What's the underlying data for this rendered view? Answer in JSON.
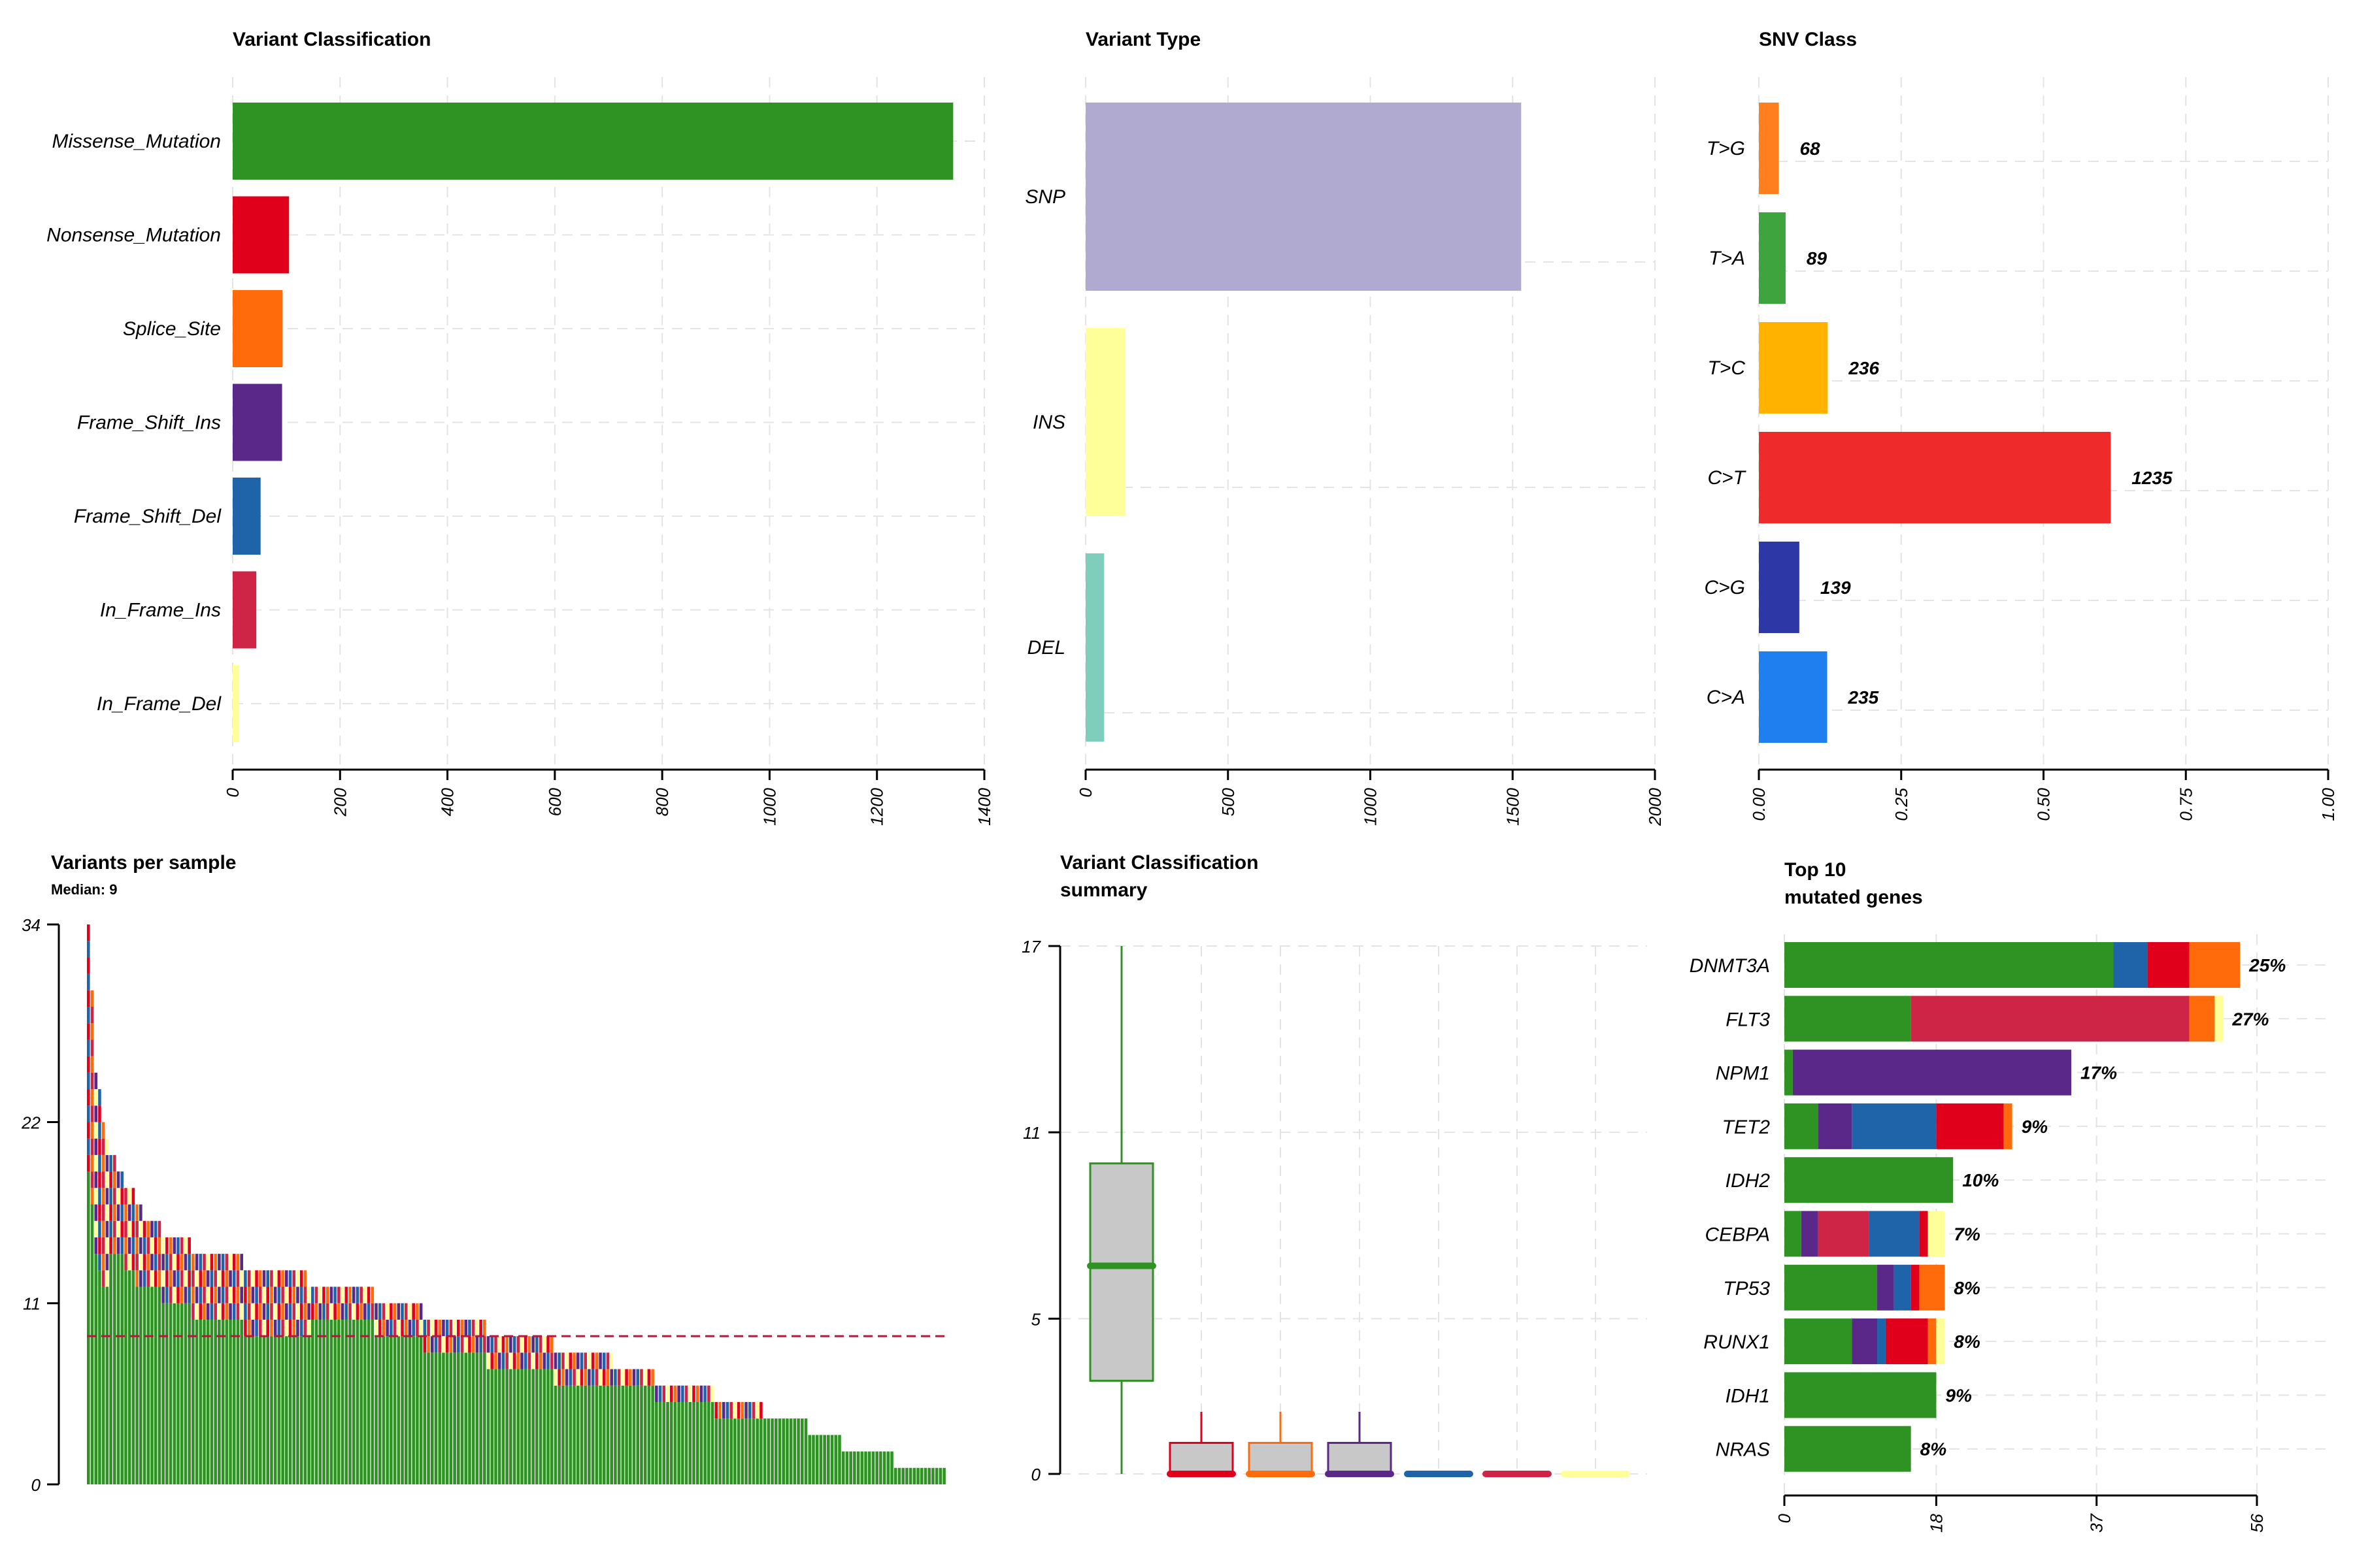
{
  "chart_data": [
    {
      "type": "bar",
      "orientation": "horizontal",
      "title": "Variant Classification",
      "categories": [
        "Missense_Mutation",
        "Nonsense_Mutation",
        "Splice_Site",
        "Frame_Shift_Ins",
        "Frame_Shift_Del",
        "In_Frame_Ins",
        "In_Frame_Del"
      ],
      "values": [
        1342,
        105,
        93,
        92,
        52,
        44,
        12
      ],
      "colors": [
        "#2e9322",
        "#e0001b",
        "#ff6a0b",
        "#5a2888",
        "#1f64a8",
        "#ce2446",
        "#ffff99"
      ],
      "xlim": [
        0,
        1400
      ],
      "xticks": [
        0,
        200,
        400,
        600,
        800,
        1000,
        1200,
        1400
      ],
      "grid": true
    },
    {
      "type": "bar",
      "orientation": "horizontal",
      "title": "Variant Type",
      "categories": [
        "SNP",
        "INS",
        "DEL"
      ],
      "values": [
        1530,
        140,
        65
      ],
      "colors": [
        "#b0aad1",
        "#ffff99",
        "#7fcdbb"
      ],
      "xlim": [
        0,
        2000
      ],
      "xticks": [
        0,
        500,
        1000,
        1500,
        2000
      ],
      "grid": true
    },
    {
      "type": "bar",
      "orientation": "horizontal",
      "title": "SNV Class",
      "categories": [
        "T>G",
        "T>A",
        "T>C",
        "C>T",
        "C>G",
        "C>A"
      ],
      "values": [
        0.035,
        0.047,
        0.121,
        0.618,
        0.071,
        0.12
      ],
      "labels": [
        "68",
        "89",
        "236",
        "1235",
        "139",
        "235"
      ],
      "colors": [
        "#ff7f1e",
        "#3ea43e",
        "#ffb300",
        "#ee2a2a",
        "#2d37a5",
        "#1f7fee"
      ],
      "xlim": [
        0,
        1
      ],
      "xticks": [
        "0.00",
        "0.25",
        "0.50",
        "0.75",
        "1.00"
      ],
      "grid": true
    },
    {
      "type": "bar",
      "stacked": true,
      "title": "Variants per sample",
      "subtitle": "Median: 9",
      "median": 9,
      "ylim": [
        0,
        34
      ],
      "yticks": [
        0,
        11,
        22,
        34
      ],
      "stack_order": [
        "Missense_Mutation",
        "Nonsense_Mutation",
        "Splice_Site",
        "Frame_Shift_Ins",
        "Frame_Shift_Del",
        "In_Frame_Ins",
        "In_Frame_Del"
      ],
      "stack_colors": [
        "#2e9322",
        "#e0001b",
        "#ff6a0b",
        "#5a2888",
        "#1f64a8",
        "#ce2446",
        "#ffff99"
      ],
      "totals": [
        34,
        30,
        25,
        24,
        22,
        21,
        20,
        20,
        19,
        19,
        18,
        18,
        18,
        17,
        17,
        16,
        16,
        16,
        16,
        16,
        15,
        15,
        15,
        15,
        15,
        15,
        15,
        15,
        14,
        14,
        14,
        14,
        14,
        14,
        14,
        14,
        14,
        14,
        14,
        14,
        14,
        14,
        13,
        13,
        13,
        13,
        13,
        13,
        13,
        13,
        13,
        13,
        13,
        13,
        13,
        13,
        13,
        13,
        13,
        12,
        12,
        12,
        12,
        12,
        12,
        12,
        12,
        12,
        12,
        12,
        12,
        12,
        12,
        12,
        12,
        12,
        12,
        11,
        11,
        11,
        11,
        11,
        11,
        11,
        11,
        11,
        11,
        11,
        11,
        11,
        10,
        10,
        10,
        10,
        10,
        10,
        10,
        10,
        10,
        10,
        10,
        10,
        10,
        10,
        10,
        10,
        10,
        9,
        9,
        9,
        9,
        9,
        9,
        9,
        9,
        9,
        9,
        9,
        9,
        9,
        9,
        9,
        9,
        9,
        9,
        8,
        8,
        8,
        8,
        8,
        8,
        8,
        8,
        8,
        8,
        8,
        8,
        8,
        8,
        8,
        8,
        7,
        7,
        7,
        7,
        7,
        7,
        7,
        7,
        7,
        7,
        7,
        6,
        6,
        6,
        6,
        6,
        6,
        6,
        6,
        6,
        6,
        6,
        6,
        6,
        6,
        6,
        6,
        5,
        5,
        5,
        5,
        5,
        5,
        5,
        5,
        5,
        5,
        5,
        5,
        5,
        4,
        4,
        4,
        4,
        4,
        4,
        4,
        4,
        4,
        4,
        4,
        4,
        3,
        3,
        3,
        3,
        3,
        3,
        3,
        3,
        3,
        2,
        2,
        2,
        2,
        2,
        2,
        2,
        2,
        2,
        2,
        2,
        2,
        2,
        2,
        1,
        1,
        1,
        1,
        1,
        1,
        1,
        1,
        1,
        1,
        1,
        1,
        1,
        1
      ]
    },
    {
      "type": "boxplot",
      "title": "Variant Classification",
      "title2": "summary",
      "yticks": [
        0,
        5,
        11,
        17
      ],
      "ylim": [
        0,
        17
      ],
      "boxes": [
        {
          "color": "#2e9322",
          "min": 0,
          "q1": 3,
          "median": 6.7,
          "q3": 10,
          "max": 17
        },
        {
          "color": "#e0001b",
          "min": 0,
          "q1": 0,
          "median": 0,
          "q3": 1,
          "max": 2
        },
        {
          "color": "#ff6a0b",
          "min": 0,
          "q1": 0,
          "median": 0,
          "q3": 1,
          "max": 2
        },
        {
          "color": "#5a2888",
          "min": 0,
          "q1": 0,
          "median": 0,
          "q3": 1,
          "max": 2
        },
        {
          "color": "#1f64a8",
          "min": 0,
          "q1": 0,
          "median": 0,
          "q3": 0,
          "max": 0
        },
        {
          "color": "#ce2446",
          "min": 0,
          "q1": 0,
          "median": 0,
          "q3": 0,
          "max": 0
        },
        {
          "color": "#ffff99",
          "min": 0,
          "q1": 0,
          "median": 0,
          "q3": 0,
          "max": 0
        }
      ]
    },
    {
      "type": "bar",
      "orientation": "horizontal",
      "stacked": true,
      "title": "Top 10",
      "title2": "mutated genes",
      "xlim": [
        0,
        56
      ],
      "xticks": [
        0,
        18,
        37,
        56
      ],
      "genes": [
        {
          "name": "DNMT3A",
          "label": "25%",
          "segments": [
            {
              "color": "#2e9322",
              "value": 39
            },
            {
              "color": "#1f64a8",
              "value": 4
            },
            {
              "color": "#e0001b",
              "value": 5
            },
            {
              "color": "#ff6a0b",
              "value": 6
            }
          ]
        },
        {
          "name": "FLT3",
          "label": "27%",
          "segments": [
            {
              "color": "#2e9322",
              "value": 15
            },
            {
              "color": "#ce2446",
              "value": 33
            },
            {
              "color": "#ff6a0b",
              "value": 3
            },
            {
              "color": "#ffff99",
              "value": 1
            }
          ]
        },
        {
          "name": "NPM1",
          "label": "17%",
          "segments": [
            {
              "color": "#2e9322",
              "value": 1
            },
            {
              "color": "#5a2888",
              "value": 33
            }
          ]
        },
        {
          "name": "TET2",
          "label": "9%",
          "segments": [
            {
              "color": "#2e9322",
              "value": 4
            },
            {
              "color": "#5a2888",
              "value": 4
            },
            {
              "color": "#1f64a8",
              "value": 10
            },
            {
              "color": "#e0001b",
              "value": 8
            },
            {
              "color": "#ff6a0b",
              "value": 1
            }
          ]
        },
        {
          "name": "IDH2",
          "label": "10%",
          "segments": [
            {
              "color": "#2e9322",
              "value": 20
            }
          ]
        },
        {
          "name": "CEBPA",
          "label": "7%",
          "segments": [
            {
              "color": "#2e9322",
              "value": 2
            },
            {
              "color": "#5a2888",
              "value": 2
            },
            {
              "color": "#ce2446",
              "value": 6
            },
            {
              "color": "#1f64a8",
              "value": 6
            },
            {
              "color": "#e0001b",
              "value": 1
            },
            {
              "color": "#ffff99",
              "value": 2
            }
          ]
        },
        {
          "name": "TP53",
          "label": "8%",
          "segments": [
            {
              "color": "#2e9322",
              "value": 11
            },
            {
              "color": "#5a2888",
              "value": 2
            },
            {
              "color": "#1f64a8",
              "value": 2
            },
            {
              "color": "#e0001b",
              "value": 1
            },
            {
              "color": "#ff6a0b",
              "value": 3
            }
          ]
        },
        {
          "name": "RUNX1",
          "label": "8%",
          "segments": [
            {
              "color": "#2e9322",
              "value": 8
            },
            {
              "color": "#5a2888",
              "value": 3
            },
            {
              "color": "#1f64a8",
              "value": 1
            },
            {
              "color": "#e0001b",
              "value": 5
            },
            {
              "color": "#ff6a0b",
              "value": 1
            },
            {
              "color": "#ffff99",
              "value": 1
            }
          ]
        },
        {
          "name": "IDH1",
          "label": "9%",
          "segments": [
            {
              "color": "#2e9322",
              "value": 18
            }
          ]
        },
        {
          "name": "NRAS",
          "label": "8%",
          "segments": [
            {
              "color": "#2e9322",
              "value": 15
            }
          ]
        }
      ]
    }
  ]
}
